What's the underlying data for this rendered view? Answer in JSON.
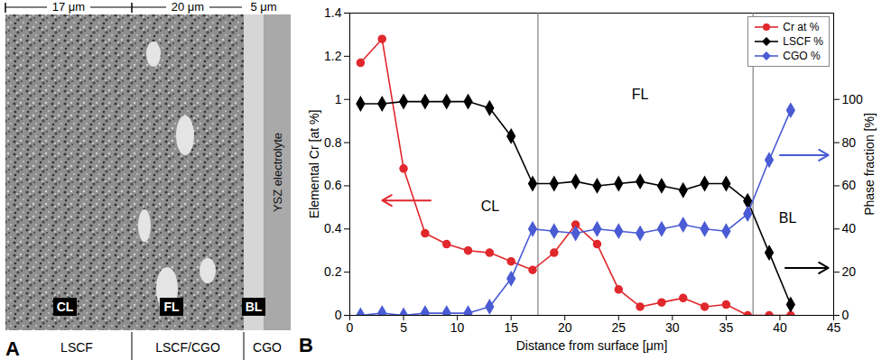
{
  "micrograph": {
    "panel": "A",
    "scale_labels": [
      "17 μm",
      "20 μm",
      "5 μm"
    ],
    "layer_tags": [
      "CL",
      "FL",
      "BL"
    ],
    "electrolyte": "YSZ electrolyte",
    "materials": [
      "LSCF",
      "LSCF/CGO",
      "CGO"
    ]
  },
  "chart_data": {
    "type": "line",
    "panel": "B",
    "xlabel": "Distance from surface [μm]",
    "ylabel": "Elemental Cr [at %]",
    "y2label": "Phase fraction [%]",
    "x": [
      1,
      3,
      5,
      7,
      9,
      11,
      13,
      15,
      17,
      19,
      21,
      23,
      25,
      27,
      29,
      31,
      33,
      35,
      37,
      39,
      41
    ],
    "xlim": [
      0,
      45
    ],
    "xticks": [
      0,
      5,
      10,
      15,
      20,
      25,
      30,
      35,
      40,
      45
    ],
    "ylim": [
      0,
      1.4
    ],
    "yticks": [
      0,
      0.2,
      0.4,
      0.6,
      0.8,
      1,
      1.2,
      1.4
    ],
    "y2lim": [
      0,
      140
    ],
    "y2ticks": [
      0,
      20,
      40,
      60,
      80,
      100
    ],
    "series": [
      {
        "name": "Cr at %",
        "color": "#e0282d",
        "marker": "circle",
        "values": [
          1.17,
          1.28,
          0.68,
          0.38,
          0.33,
          0.3,
          0.29,
          0.25,
          0.21,
          0.29,
          0.42,
          0.33,
          0.12,
          0.04,
          0.06,
          0.08,
          0.04,
          0.05,
          0.0,
          0.0,
          0.0
        ]
      },
      {
        "name": "LSCF %",
        "color": "#000000",
        "marker": "diamond",
        "axis": "y2",
        "values": [
          98,
          98,
          99,
          99,
          99,
          99,
          96,
          83,
          61,
          61,
          62,
          60,
          61,
          62,
          60,
          58,
          61,
          61,
          53,
          29,
          5
        ]
      },
      {
        "name": "CGO %",
        "color": "#4a5bd4",
        "marker": "diamond",
        "axis": "y2",
        "values": [
          0,
          1,
          0,
          1,
          1,
          1,
          4,
          17,
          40,
          39,
          38,
          40,
          39,
          38,
          40,
          42,
          40,
          39,
          47,
          72,
          95
        ]
      }
    ],
    "region_boundaries": [
      17.5,
      37.5
    ],
    "annotations": [
      "CL",
      "FL",
      "BL"
    ],
    "legend": "top-right"
  }
}
